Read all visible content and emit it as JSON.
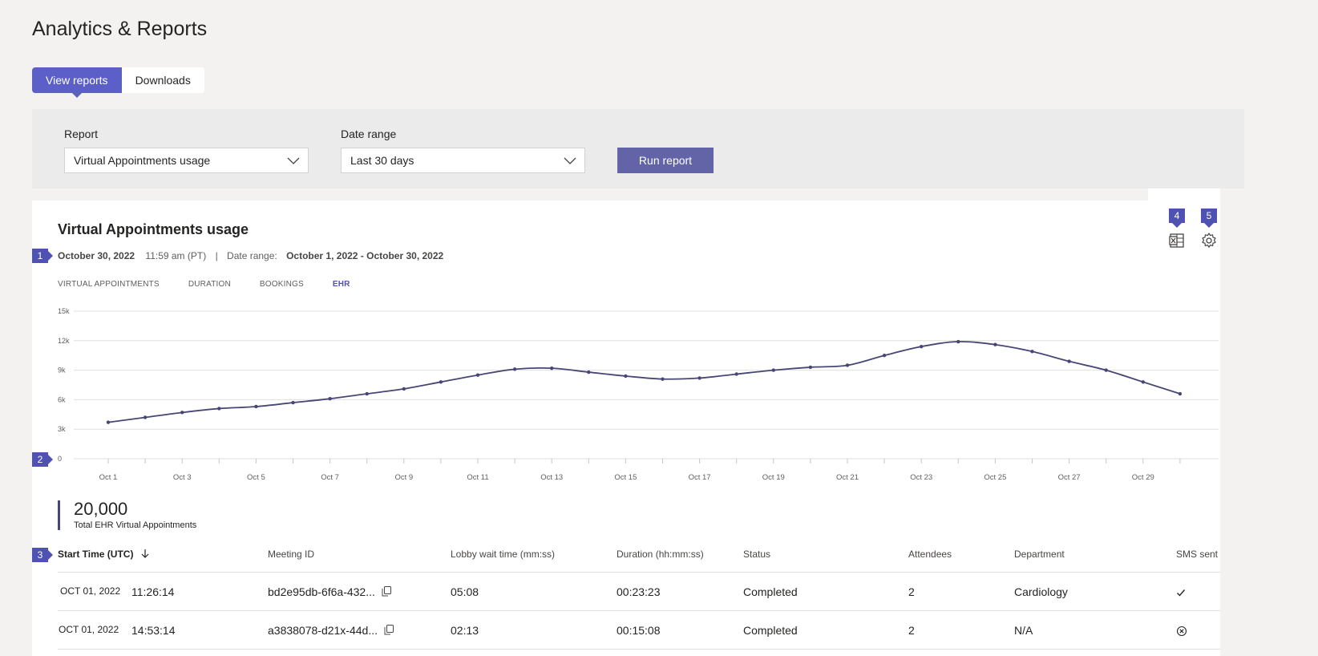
{
  "page_title": "Analytics & Reports",
  "tabs": [
    {
      "label": "View reports",
      "active": true
    },
    {
      "label": "Downloads",
      "active": false
    }
  ],
  "filters": {
    "report_label": "Report",
    "report_value": "Virtual Appointments usage",
    "date_label": "Date range",
    "date_value": "Last 30 days",
    "run_label": "Run report"
  },
  "card": {
    "title": "Virtual Appointments usage",
    "date": "October 30, 2022",
    "time": "11:59 am (PT)",
    "separator": "|",
    "range_label": "Date range:",
    "range_value": "October 1, 2022 - October 30, 2022"
  },
  "markers": [
    "1",
    "2",
    "3",
    "4",
    "5"
  ],
  "icons": {
    "export": "excel-export-icon",
    "settings": "gear-icon",
    "copy": "copy-icon",
    "sort": "arrow-down-icon",
    "sent": "checkmark-icon",
    "not_sent": "circle-x-icon"
  },
  "chart_tabs": [
    {
      "label": "VIRTUAL APPOINTMENTS",
      "active": false
    },
    {
      "label": "DURATION",
      "active": false
    },
    {
      "label": "BOOKINGS",
      "active": false
    },
    {
      "label": "EHR",
      "active": true
    }
  ],
  "colors": {
    "accent": "#5b5fc7",
    "line": "#464775",
    "run_button": "#6264a7",
    "marker": "#4f52b2"
  },
  "chart_data": {
    "type": "line",
    "y_tick_labels": [
      "0",
      "3k",
      "6k",
      "9k",
      "12k",
      "15k"
    ],
    "ylim": [
      0,
      15000
    ],
    "x_tick_labels": [
      "Oct 1",
      "Oct 3",
      "Oct 5",
      "Oct 7",
      "Oct 9",
      "Oct 11",
      "Oct 13",
      "Oct 15",
      "Oct 17",
      "Oct 19",
      "Oct 21",
      "Oct 23",
      "Oct 25",
      "Oct 27",
      "Oct 29"
    ],
    "x": [
      "Oct 1",
      "Oct 2",
      "Oct 3",
      "Oct 4",
      "Oct 5",
      "Oct 6",
      "Oct 7",
      "Oct 8",
      "Oct 9",
      "Oct 10",
      "Oct 11",
      "Oct 12",
      "Oct 13",
      "Oct 14",
      "Oct 15",
      "Oct 16",
      "Oct 17",
      "Oct 18",
      "Oct 19",
      "Oct 20",
      "Oct 21",
      "Oct 22",
      "Oct 23",
      "Oct 24",
      "Oct 25",
      "Oct 26",
      "Oct 27",
      "Oct 28",
      "Oct 29",
      "Oct 30"
    ],
    "values": [
      3700,
      4200,
      4700,
      5100,
      5300,
      5700,
      6100,
      6600,
      7100,
      7800,
      8500,
      9100,
      9200,
      8800,
      8400,
      8100,
      8200,
      8600,
      9000,
      9300,
      9500,
      10500,
      11400,
      11900,
      11600,
      10900,
      9900,
      9000,
      7800,
      6600
    ],
    "grid": true
  },
  "total": {
    "value": "20,000",
    "label": "Total EHR Virtual Appointments"
  },
  "table": {
    "headers": [
      "Start Time (UTC)",
      "Meeting ID",
      "Lobby wait time (mm:ss)",
      "Duration (hh:mm:ss)",
      "Status",
      "Attendees",
      "Department",
      "SMS sent"
    ],
    "rows": [
      {
        "date": "OCT 01, 2022",
        "time": "11:26:14",
        "meeting_id": "bd2e95db-6f6a-432...",
        "lobby": "05:08",
        "duration": "00:23:23",
        "status": "Completed",
        "attendees": "2",
        "department": "Cardiology",
        "sms": "sent"
      },
      {
        "date": "OCT 01, 2022",
        "time": "14:53:14",
        "meeting_id": "a3838078-d21x-44d...",
        "lobby": "02:13",
        "duration": "00:15:08",
        "status": "Completed",
        "attendees": "2",
        "department": "N/A",
        "sms": "not-sent"
      }
    ]
  }
}
